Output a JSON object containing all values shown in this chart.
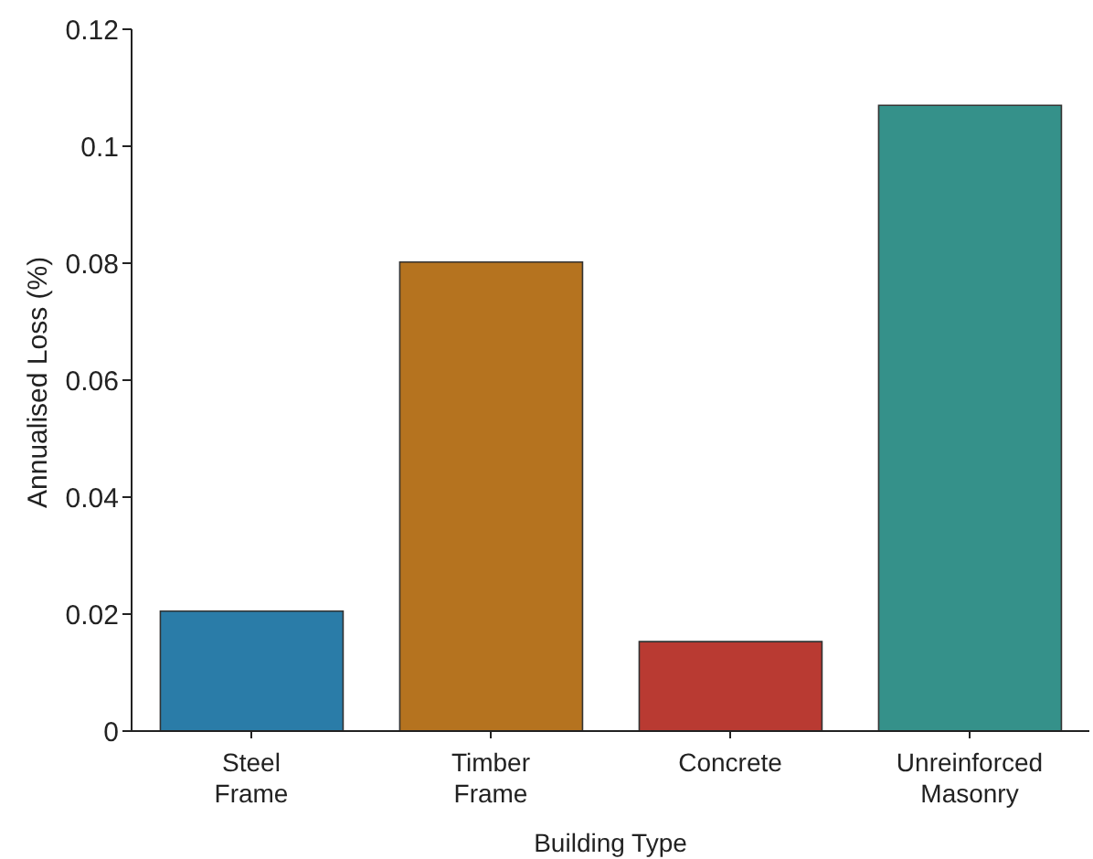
{
  "chart_data": {
    "type": "bar",
    "xlabel": "Building Type",
    "ylabel": "Annualised Loss (%)",
    "categories": [
      "Steel Frame",
      "Timber Frame",
      "Concrete",
      "Unreinforced Masonry"
    ],
    "values": [
      0.0205,
      0.0802,
      0.0153,
      0.107
    ],
    "colors": [
      "#2a7ca8",
      "#b5731f",
      "#b93a32",
      "#35918a"
    ],
    "ylim": [
      0,
      0.12
    ],
    "yticks": [
      0,
      0.02,
      0.04,
      0.06,
      0.08,
      0.1,
      0.12
    ]
  }
}
